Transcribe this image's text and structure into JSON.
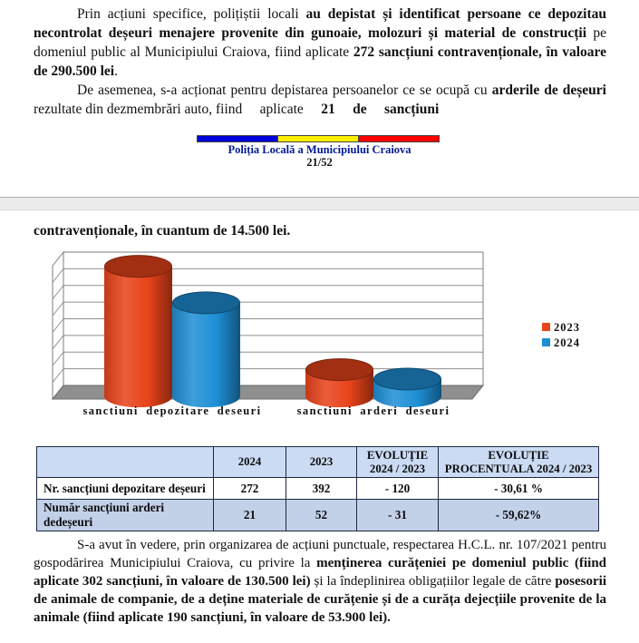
{
  "page1": {
    "paragraphs": [
      [
        {
          "t": "Prin acțiuni specifice, polițiștii locali ",
          "b": false
        },
        {
          "t": "au depistat și identificat persoane ce depozitau necontrolat deșeuri menajere provenite din gunoaie, molozuri și material de construcții",
          "b": true
        },
        {
          "t": " pe domeniul public al Municipiului Craiova, fiind aplicate ",
          "b": false
        },
        {
          "t": "272 sancțiuni contravenționale, în valoare de 290.500 lei",
          "b": true
        },
        {
          "t": ".",
          "b": false
        }
      ],
      [
        {
          "t": "De asemenea, s-a acționat pentru depistarea persoanelor ce se ocupă cu ",
          "b": false
        },
        {
          "t": "arderile de deșeuri",
          "b": true
        },
        {
          "t": " rezultate din dezmembrări auto, fiind  aplicate  ",
          "b": false
        },
        {
          "t": "21  de  sancțiuni",
          "b": true
        }
      ]
    ],
    "footer": {
      "org": "Poliția Locală a Municipiului Craiova",
      "page_num": "21/52",
      "flag": [
        "#0000d8",
        "#ffef00",
        "#ff0000"
      ]
    }
  },
  "page2": {
    "lead": "contravenționale, în cuantum de 14.500 lei.",
    "closing": [
      {
        "t": "S-a avut în vedere, prin organizarea de acțiuni punctuale, respectarea H.C.L. nr. 107/2021 pentru gospodărirea Municipiului Craiova, cu privire la ",
        "b": false
      },
      {
        "t": "menținerea curățeniei pe domeniul public (fiind aplicate 302 sancțiuni, în valoare de 130.500 lei)",
        "b": true
      },
      {
        "t": " și la îndeplinirea obligațiilor legale de către ",
        "b": false
      },
      {
        "t": "posesorii de animale de companie, de a deține materiale de curățenie și de a curăța dejecțiile provenite de la animale (fiind aplicate 190 sancțiuni, în valoare de 53.900 lei).",
        "b": true
      }
    ]
  },
  "chart_data": {
    "type": "bar",
    "style": "3d-cylinder",
    "title": "",
    "xlabel": "",
    "ylabel": "",
    "categories": [
      "sanctiuni depozitare deseuri",
      "sanctiuni arderi deseuri"
    ],
    "series": [
      {
        "name": "2023",
        "color": "#e8431a",
        "values": [
          392,
          52
        ]
      },
      {
        "name": "2024",
        "color": "#1e8fd5",
        "values": [
          272,
          21
        ]
      }
    ],
    "ylim": [
      0,
      400
    ],
    "gridline_rows": 8,
    "grid": true,
    "legend_position": "right",
    "value_axis_labels_visible": false
  },
  "table": {
    "headers": [
      "",
      "2024",
      "2023",
      "EVOLUȚIE\n2024 / 2023",
      "EVOLUȚIE\nPROCENTUALA 2024 / 2023"
    ],
    "rows": [
      [
        "Nr. sancțiuni depozitare deșeuri",
        "272",
        "392",
        "- 120",
        "- 30,61 %"
      ],
      [
        "Număr sancțiuni arderi dedeșeuri",
        "21",
        "52",
        "- 31",
        "- 59,62%"
      ]
    ]
  }
}
